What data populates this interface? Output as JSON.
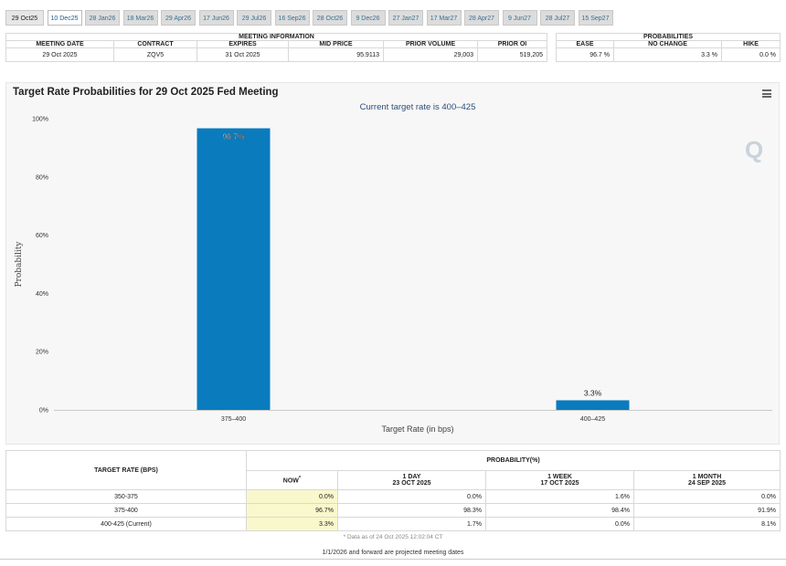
{
  "tabs": [
    {
      "label": "29 Oct25",
      "state": "first"
    },
    {
      "label": "10 Dec25",
      "state": "active"
    },
    {
      "label": "28 Jan26"
    },
    {
      "label": "18 Mar26"
    },
    {
      "label": "29 Apr26"
    },
    {
      "label": "17 Jun26"
    },
    {
      "label": "29 Jul26"
    },
    {
      "label": "16 Sep26"
    },
    {
      "label": "28 Oct26"
    },
    {
      "label": "9 Dec26"
    },
    {
      "label": "27 Jan27"
    },
    {
      "label": "17 Mar27"
    },
    {
      "label": "28 Apr27"
    },
    {
      "label": "9 Jun27"
    },
    {
      "label": "28 Jul27"
    },
    {
      "label": "15 Sep27"
    }
  ],
  "meeting_info": {
    "title": "MEETING INFORMATION",
    "headers": [
      "MEETING DATE",
      "CONTRACT",
      "EXPIRES",
      "MID PRICE",
      "PRIOR VOLUME",
      "PRIOR OI"
    ],
    "row": [
      "29 Oct 2025",
      "ZQV5",
      "31 Oct 2025",
      "95.9113",
      "29,003",
      "519,205"
    ]
  },
  "probabilities": {
    "title": "PROBABILITIES",
    "headers": [
      "EASE",
      "NO CHANGE",
      "HIKE"
    ],
    "row": [
      "96.7 %",
      "3.3 %",
      "0.0 %"
    ]
  },
  "chart": {
    "title": "Target Rate Probabilities for 29 Oct 2025 Fed Meeting",
    "menu_icon": "hamburger-menu-icon",
    "watermark_icon": "q-logo-icon",
    "bar_color": "#0a7bbd"
  },
  "chart_data": {
    "type": "bar",
    "subtitle": "Current target rate is 400–425",
    "categories": [
      "375–400",
      "400–425"
    ],
    "values": [
      96.7,
      3.3
    ],
    "data_labels": [
      "96.7%",
      "3.3%"
    ],
    "xlabel": "Target Rate (in bps)",
    "ylabel": "Probability",
    "ylim": [
      0,
      100
    ],
    "yticks": [
      "0%",
      "20%",
      "40%",
      "60%",
      "80%",
      "100%"
    ],
    "grid": false
  },
  "rate_table": {
    "header_rate": "TARGET RATE (BPS)",
    "header_prob": "PROBABILITY(%)",
    "now_label": "NOW",
    "now_mark": "*",
    "periods": [
      {
        "label": "1 DAY",
        "date": "23 OCT 2025"
      },
      {
        "label": "1 WEEK",
        "date": "17 OCT 2025"
      },
      {
        "label": "1 MONTH",
        "date": "24 SEP 2025"
      }
    ],
    "rows": [
      {
        "rate": "350-375",
        "now": "0.0%",
        "day": "0.0%",
        "week": "1.6%",
        "month": "0.0%"
      },
      {
        "rate": "375-400",
        "now": "96.7%",
        "day": "98.3%",
        "week": "98.4%",
        "month": "91.9%"
      },
      {
        "rate": "400-425 (Current)",
        "now": "3.3%",
        "day": "1.7%",
        "week": "0.0%",
        "month": "8.1%"
      }
    ],
    "note": "* Data as of 24 Oct 2025 12:02:04 CT"
  },
  "footer": "1/1/2026 and forward are projected meeting dates"
}
